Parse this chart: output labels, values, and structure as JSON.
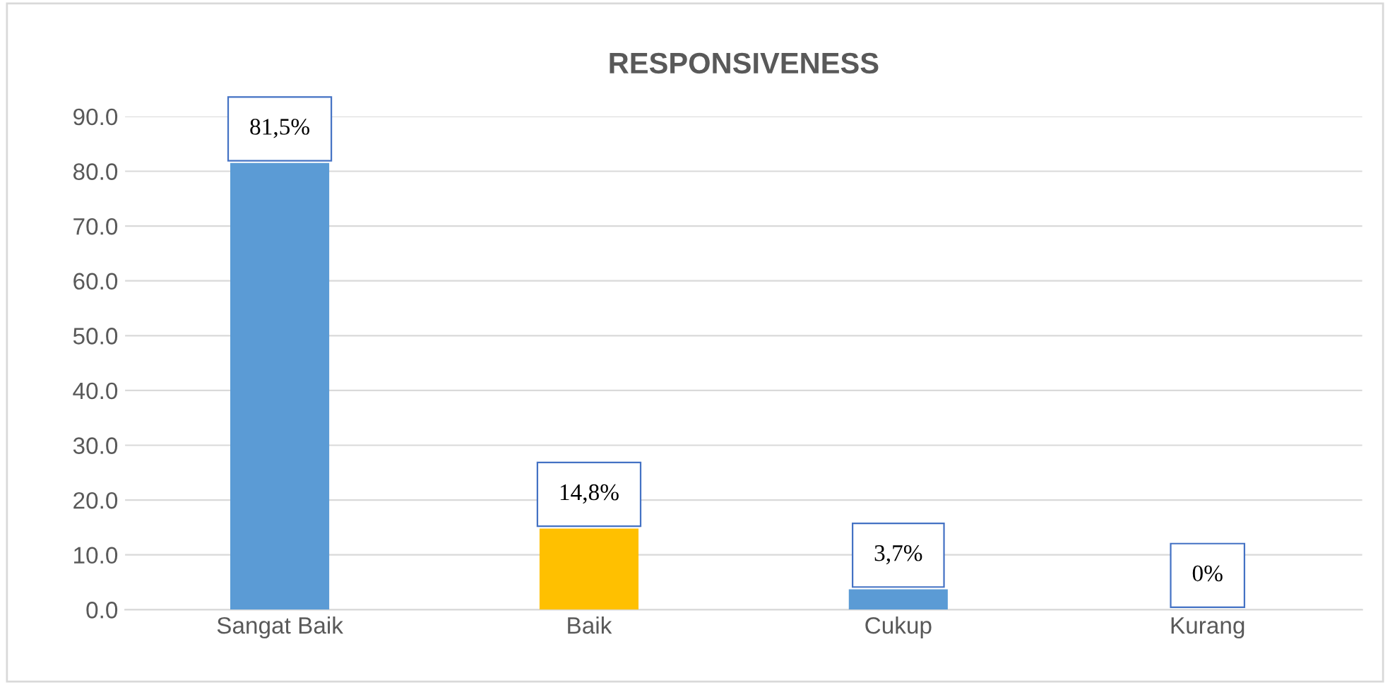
{
  "chart_data": {
    "type": "bar",
    "title": "RESPONSIVENESS",
    "categories": [
      "Sangat Baik",
      "Baik",
      "Cukup",
      "Kurang"
    ],
    "values": [
      81.5,
      14.8,
      3.7,
      0
    ],
    "colors": [
      "#5b9bd5",
      "#ffc000",
      "#5b9bd5",
      "#5b9bd5"
    ],
    "value_labels": [
      "81,5%",
      "14,8%",
      "3,7%",
      "0%"
    ],
    "ylim": [
      0,
      90
    ],
    "yticks": [
      {
        "value": 0,
        "label": "0.0"
      },
      {
        "value": 10,
        "label": "10.0"
      },
      {
        "value": 20,
        "label": "20.0"
      },
      {
        "value": 30,
        "label": "30.0"
      },
      {
        "value": 40,
        "label": "40.0"
      },
      {
        "value": 50,
        "label": "50.0"
      },
      {
        "value": 60,
        "label": "60.0"
      },
      {
        "value": 70,
        "label": "70.0"
      },
      {
        "value": 80,
        "label": "80.0"
      },
      {
        "value": 90,
        "label": "90.0"
      }
    ],
    "grid": "y",
    "legend": false
  }
}
